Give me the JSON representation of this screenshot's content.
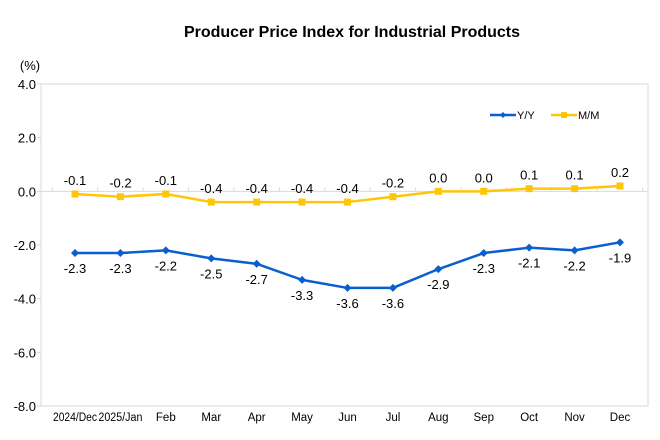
{
  "chart_data": {
    "type": "line",
    "title": "Producer Price Index for Industrial Products",
    "ylabel": "(%)",
    "xlabel": "",
    "ylim": [
      -8.0,
      4.0
    ],
    "yticks": [
      "4.0",
      "2.0",
      "0.0",
      "-2.0",
      "-4.0",
      "-6.0",
      "-8.0"
    ],
    "ytick_values": [
      4,
      2,
      0,
      -2,
      -4,
      -6,
      -8
    ],
    "grid": false,
    "legend_position": "top-right",
    "categories": [
      "2024/Dec",
      "2025/Jan",
      "Feb",
      "Mar",
      "Apr",
      "May",
      "Jun",
      "Jul",
      "Aug",
      "Sep",
      "Oct",
      "Nov",
      "Dec"
    ],
    "series": [
      {
        "name": "Y/Y",
        "color": "#0a5fce",
        "marker": "diamond",
        "label_position": "below",
        "values": [
          -2.3,
          -2.3,
          -2.2,
          -2.5,
          -2.7,
          -3.3,
          -3.6,
          -3.6,
          -2.9,
          -2.3,
          -2.1,
          -2.2,
          -1.9
        ],
        "labels": [
          "-2.3",
          "-2.3",
          "-2.2",
          "-2.5",
          "-2.7",
          "-3.3",
          "-3.6",
          "-3.6",
          "-2.9",
          "-2.3",
          "-2.1",
          "-2.2",
          "-1.9"
        ]
      },
      {
        "name": "M/M",
        "color": "#fec609",
        "marker": "square",
        "label_position": "above",
        "values": [
          -0.1,
          -0.2,
          -0.1,
          -0.4,
          -0.4,
          -0.4,
          -0.4,
          -0.2,
          0.0,
          0.0,
          0.1,
          0.1,
          0.2
        ],
        "labels": [
          "-0.1",
          "-0.2",
          "-0.1",
          "-0.4",
          "-0.4",
          "-0.4",
          "-0.4",
          "-0.2",
          "0.0",
          "0.0",
          "0.1",
          "0.1",
          "0.2"
        ]
      }
    ]
  }
}
